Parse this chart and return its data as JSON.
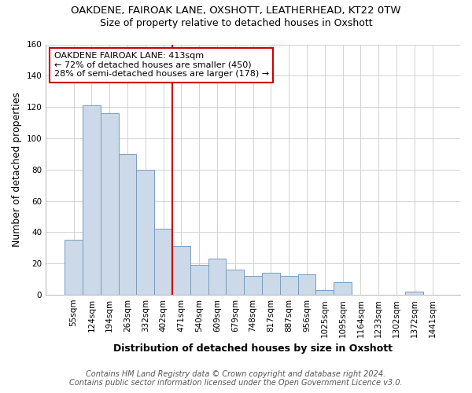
{
  "title_line1": "OAKDENE, FAIROAK LANE, OXSHOTT, LEATHERHEAD, KT22 0TW",
  "title_line2": "Size of property relative to detached houses in Oxshott",
  "xlabel": "Distribution of detached houses by size in Oxshott",
  "ylabel": "Number of detached properties",
  "categories": [
    "55sqm",
    "124sqm",
    "194sqm",
    "263sqm",
    "332sqm",
    "402sqm",
    "471sqm",
    "540sqm",
    "609sqm",
    "679sqm",
    "748sqm",
    "817sqm",
    "887sqm",
    "956sqm",
    "1025sqm",
    "1095sqm",
    "1164sqm",
    "1233sqm",
    "1302sqm",
    "1372sqm",
    "1441sqm"
  ],
  "values": [
    35,
    121,
    116,
    90,
    80,
    42,
    31,
    19,
    23,
    16,
    12,
    14,
    12,
    13,
    3,
    8,
    0,
    0,
    0,
    2,
    0
  ],
  "bar_color": "#ccd9e8",
  "bar_edge_color": "#7a9cbf",
  "vline_index": 5,
  "vline_color": "#cc0000",
  "annotation_line1": "OAKDENE FAIROAK LANE: 413sqm",
  "annotation_line2": "← 72% of detached houses are smaller (450)",
  "annotation_line3": "28% of semi-detached houses are larger (178) →",
  "annotation_box_edge": "#cc0000",
  "ylim": [
    0,
    160
  ],
  "yticks": [
    0,
    20,
    40,
    60,
    80,
    100,
    120,
    140,
    160
  ],
  "bg_color": "#ffffff",
  "grid_color": "#cccccc",
  "footer_line1": "Contains HM Land Registry data © Crown copyright and database right 2024.",
  "footer_line2": "Contains public sector information licensed under the Open Government Licence v3.0.",
  "title_fontsize": 9.5,
  "subtitle_fontsize": 9,
  "axis_label_fontsize": 9,
  "tick_fontsize": 7.5,
  "footer_fontsize": 7
}
